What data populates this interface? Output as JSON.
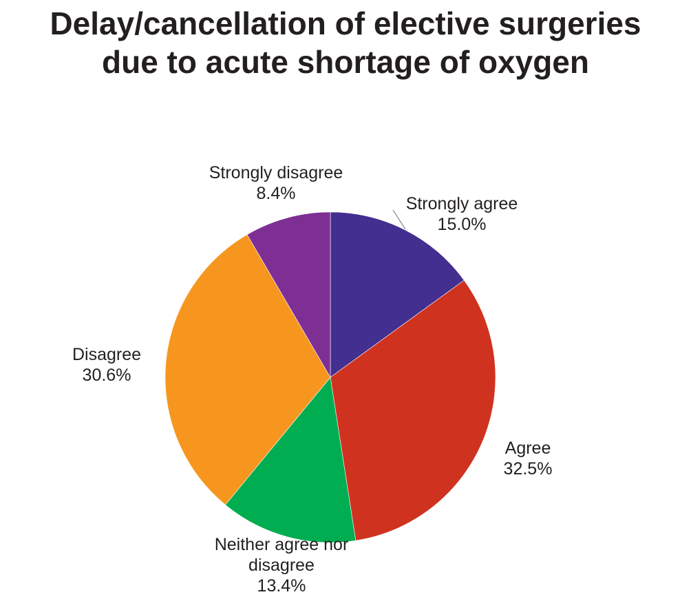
{
  "chart_data": {
    "type": "pie",
    "title": [
      "Delay/cancellation of elective surgeries",
      "due to acute shortage of oxygen"
    ],
    "slices": [
      {
        "label": [
          "Strongly agree"
        ],
        "value": 15.0,
        "value_label": "15.0%",
        "color": "#432f8f"
      },
      {
        "label": [
          "Agree"
        ],
        "value": 32.5,
        "value_label": "32.5%",
        "color": "#d03220"
      },
      {
        "label": [
          "Neither agree nor",
          "disagree"
        ],
        "value": 13.4,
        "value_label": "13.4%",
        "color": "#00ad50"
      },
      {
        "label": [
          "Disagree"
        ],
        "value": 30.6,
        "value_label": "30.6%",
        "color": "#f7961f"
      },
      {
        "label": [
          "Strongly disagree"
        ],
        "value": 8.4,
        "value_label": "8.4%",
        "color": "#7e2f93"
      }
    ],
    "start": "12 o'clock",
    "direction": "clockwise"
  }
}
